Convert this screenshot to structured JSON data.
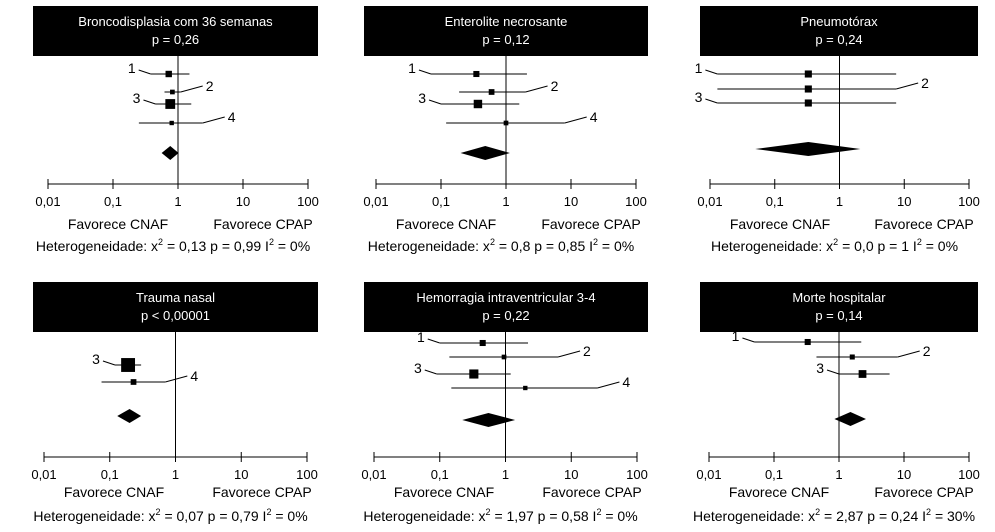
{
  "chart_data": [
    {
      "type": "forest",
      "title": "Broncodisplasia com 36 semanas",
      "subtitle": "p = 0,26",
      "x_scale": "log",
      "xlim": [
        0.01,
        100
      ],
      "ticks": [
        0.01,
        0.1,
        1,
        10,
        100
      ],
      "tick_labels": [
        "0,01",
        "0,1",
        "1",
        "10",
        "100"
      ],
      "favors_left": "Favorece CNAF",
      "favors_right": "Favorece CPAP",
      "heterogeneity": {
        "prefix": "Heterogeneidade: x",
        "sup1": "2",
        "mid": " = 0,13 p = 0,99 I",
        "sup2": "2",
        "suffix": " = 0%"
      },
      "studies": [
        {
          "label": "1",
          "estimate": 0.72,
          "ci": [
            0.38,
            1.5
          ],
          "weight": 1.0
        },
        {
          "label": "2",
          "estimate": 0.82,
          "ci": [
            0.62,
            1.1
          ],
          "weight": 0.5
        },
        {
          "label": "3",
          "estimate": 0.76,
          "ci": [
            0.45,
            1.6
          ],
          "weight": 2.0
        },
        {
          "label": "4",
          "estimate": 0.8,
          "ci": [
            0.25,
            2.4
          ],
          "weight": 0.4
        }
      ],
      "pooled": {
        "estimate": 0.76,
        "ci": [
          0.56,
          1.02
        ]
      }
    },
    {
      "type": "forest",
      "title": "Enterolite necrosante",
      "subtitle": "p = 0,12",
      "x_scale": "log",
      "xlim": [
        0.01,
        100
      ],
      "ticks": [
        0.01,
        0.1,
        1,
        10,
        100
      ],
      "tick_labels": [
        "0,01",
        "0,1",
        "1",
        "10",
        "100"
      ],
      "favors_left": "Favorece CNAF",
      "favors_right": "Favorece CPAP",
      "heterogeneity": {
        "prefix": "Heterogeneidade: x",
        "sup1": "2",
        "mid": " = 0,8 p = 0,85 I",
        "sup2": "2",
        "suffix": " = 0%"
      },
      "studies": [
        {
          "label": "1",
          "estimate": 0.35,
          "ci": [
            0.07,
            2.1
          ],
          "weight": 0.9
        },
        {
          "label": "2",
          "estimate": 0.6,
          "ci": [
            0.19,
            2.0
          ],
          "weight": 0.8
        },
        {
          "label": "3",
          "estimate": 0.37,
          "ci": [
            0.1,
            1.6
          ],
          "weight": 1.6
        },
        {
          "label": "4",
          "estimate": 1.0,
          "ci": [
            0.12,
            8.0
          ],
          "weight": 0.5
        }
      ],
      "pooled": {
        "estimate": 0.48,
        "ci": [
          0.2,
          1.15
        ]
      }
    },
    {
      "type": "forest",
      "title": "Pneumotórax",
      "subtitle": "p = 0,24",
      "x_scale": "log",
      "xlim": [
        0.01,
        100
      ],
      "ticks": [
        0.01,
        0.1,
        1,
        10,
        100
      ],
      "tick_labels": [
        "0,01",
        "0,1",
        "1",
        "10",
        "100"
      ],
      "favors_left": "Favorece CNAF",
      "favors_right": "Favorece CPAP",
      "heterogeneity": {
        "prefix": "Heterogeneidade: x",
        "sup1": "2",
        "mid": " = 0,0 p = 1 I",
        "sup2": "2",
        "suffix": " = 0%"
      },
      "studies": [
        {
          "label": "1",
          "estimate": 0.33,
          "ci": [
            0.013,
            7.5
          ],
          "weight": 1.2
        },
        {
          "label": "2",
          "estimate": 0.33,
          "ci": [
            0.013,
            7.5
          ],
          "weight": 1.2
        },
        {
          "label": "3",
          "estimate": 0.33,
          "ci": [
            0.013,
            7.5
          ],
          "weight": 1.2
        }
      ],
      "pooled": {
        "estimate": 0.33,
        "ci": [
          0.05,
          2.1
        ]
      }
    },
    {
      "type": "forest",
      "title": "Trauma nasal",
      "subtitle": "p < 0,00001",
      "x_scale": "log",
      "xlim": [
        0.01,
        100
      ],
      "ticks": [
        0.01,
        0.1,
        1,
        10,
        100
      ],
      "tick_labels": [
        "0,01",
        "0,1",
        "1",
        "10",
        "100"
      ],
      "favors_left": "Favorece CNAF",
      "favors_right": "Favorece CPAP",
      "heterogeneity": {
        "prefix": "Heterogeneidade: x",
        "sup1": "2",
        "mid": " = 0,07 p = 0,79 I",
        "sup2": "2",
        "suffix": " = 0%"
      },
      "studies": [
        {
          "label": "3",
          "estimate": 0.19,
          "ci": [
            0.12,
            0.3
          ],
          "weight": 3.2
        },
        {
          "label": "4",
          "estimate": 0.23,
          "ci": [
            0.075,
            0.7
          ],
          "weight": 0.8
        }
      ],
      "pooled": {
        "estimate": 0.2,
        "ci": [
          0.13,
          0.3
        ]
      }
    },
    {
      "type": "forest",
      "title": "Hemorragia intraventricular 3-4",
      "subtitle": "p = 0,22",
      "x_scale": "log",
      "xlim": [
        0.01,
        100
      ],
      "ticks": [
        0.01,
        0.1,
        1,
        10,
        100
      ],
      "tick_labels": [
        "0,01",
        "0,1",
        "1",
        "10",
        "100"
      ],
      "favors_left": "Favorece CNAF",
      "favors_right": "Favorece CPAP",
      "heterogeneity": {
        "prefix": "Heterogeneidade: x",
        "sup1": "2",
        "mid": " = 1,97 p = 0,58 I",
        "sup2": "2",
        "suffix": " = 0%"
      },
      "studies": [
        {
          "label": "1",
          "estimate": 0.45,
          "ci": [
            0.1,
            2.2
          ],
          "weight": 0.9
        },
        {
          "label": "2",
          "estimate": 0.95,
          "ci": [
            0.14,
            6.3
          ],
          "weight": 0.5
        },
        {
          "label": "3",
          "estimate": 0.33,
          "ci": [
            0.09,
            1.2
          ],
          "weight": 1.8
        },
        {
          "label": "4",
          "estimate": 2.0,
          "ci": [
            0.15,
            25.0
          ],
          "weight": 0.4
        }
      ],
      "pooled": {
        "estimate": 0.55,
        "ci": [
          0.22,
          1.4
        ]
      }
    },
    {
      "type": "forest",
      "title": "Morte hospitalar",
      "subtitle": "p = 0,14",
      "x_scale": "log",
      "xlim": [
        0.01,
        100
      ],
      "ticks": [
        0.01,
        0.1,
        1,
        10,
        100
      ],
      "tick_labels": [
        "0,01",
        "0,1",
        "1",
        "10",
        "100"
      ],
      "favors_left": "Favorece CNAF",
      "favors_right": "Favorece CPAP",
      "heterogeneity": {
        "prefix": "Heterogeneidade: x",
        "sup1": "2",
        "mid": " = 2,87 p = 0,24 I",
        "sup2": "2",
        "suffix": " = 30%"
      },
      "studies": [
        {
          "label": "1",
          "estimate": 0.33,
          "ci": [
            0.05,
            2.2
          ],
          "weight": 0.9
        },
        {
          "label": "2",
          "estimate": 1.6,
          "ci": [
            0.45,
            8.0
          ],
          "weight": 0.6
        },
        {
          "label": "3",
          "estimate": 2.3,
          "ci": [
            1.0,
            6.0
          ],
          "weight": 1.4
        }
      ],
      "pooled": {
        "estimate": 1.5,
        "ci": [
          0.85,
          2.6
        ]
      }
    }
  ]
}
